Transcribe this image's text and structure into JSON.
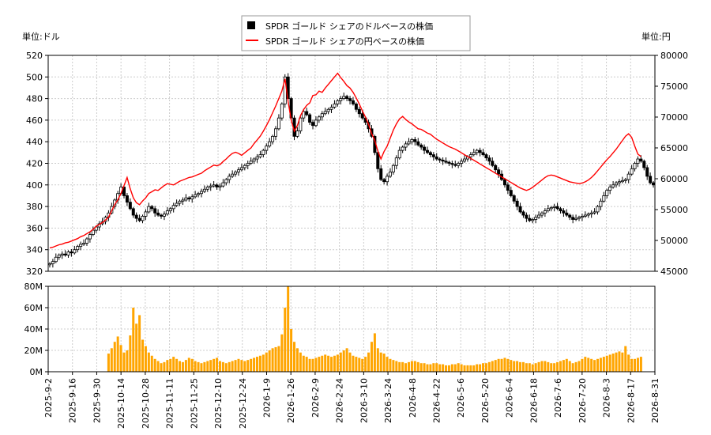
{
  "chart_data": [
    {
      "type": "candlestick+line",
      "title": "",
      "legend": {
        "placement": "top-center",
        "entries": [
          {
            "label": "SPDR ゴールド シェアのドルベースの株価",
            "color": "#000000",
            "marker": "square"
          },
          {
            "label": "SPDR ゴールド シェアの円ベースの株価",
            "color": "#ff0000",
            "marker": "line"
          }
        ]
      },
      "left_axis": {
        "unit_label": "単位:ドル",
        "ylim": [
          320,
          520
        ],
        "ticks": [
          320,
          340,
          360,
          380,
          400,
          420,
          440,
          460,
          480,
          500,
          520
        ]
      },
      "right_axis": {
        "unit_label": "単位:円",
        "ylim": [
          45000,
          80000
        ],
        "ticks": [
          45000,
          50000,
          55000,
          60000,
          65000,
          70000,
          75000,
          80000
        ]
      },
      "grid": true,
      "x_ticks": [
        "2025-9-2",
        "2025-9-16",
        "2025-9-30",
        "2025-10-14",
        "2025-10-28",
        "2025-11-11",
        "2025-11-25",
        "2025-12-10",
        "2025-12-24",
        "2026-1-9",
        "2026-1-26",
        "2026-2-9",
        "2026-2-24",
        "2026-3-10",
        "2026-3-24",
        "2026-4-8",
        "2026-4-22",
        "2026-5-6",
        "2026-5-20",
        "2026-6-4",
        "2026-6-18",
        "2026-7-6",
        "2026-7-20",
        "2026-8-3",
        "2026-8-17",
        "2026-8-31"
      ],
      "series": [
        {
          "name": "SPDR ゴールド シェアのドルベースの株価",
          "kind": "candlestick",
          "close": [
            327,
            329,
            333,
            335,
            336,
            335,
            338,
            337,
            340,
            343,
            345,
            346,
            350,
            354,
            358,
            361,
            364,
            366,
            370,
            374,
            380,
            386,
            392,
            398,
            390,
            384,
            378,
            372,
            369,
            367,
            371,
            375,
            380,
            378,
            374,
            372,
            371,
            373,
            376,
            378,
            381,
            383,
            385,
            386,
            388,
            387,
            389,
            391,
            392,
            394,
            396,
            398,
            399,
            400,
            398,
            399,
            402,
            405,
            408,
            410,
            412,
            414,
            416,
            418,
            420,
            422,
            424,
            426,
            428,
            432,
            436,
            440,
            445,
            452,
            462,
            475,
            500,
            480,
            462,
            445,
            450,
            462,
            468,
            465,
            458,
            455,
            460,
            463,
            466,
            468,
            470,
            472,
            475,
            478,
            480,
            482,
            480,
            478,
            475,
            470,
            466,
            462,
            458,
            452,
            445,
            430,
            415,
            405,
            403,
            408,
            412,
            418,
            425,
            432,
            435,
            438,
            440,
            442,
            440,
            437,
            435,
            432,
            430,
            428,
            426,
            424,
            423,
            422,
            421,
            420,
            419,
            418,
            420,
            422,
            424,
            426,
            428,
            430,
            432,
            430,
            428,
            425,
            422,
            418,
            414,
            410,
            405,
            400,
            395,
            390,
            385,
            380,
            375,
            372,
            369,
            367,
            368,
            370,
            372,
            374,
            376,
            378,
            379,
            380,
            378,
            376,
            374,
            372,
            370,
            368,
            369,
            370,
            371,
            372,
            373,
            374,
            375,
            380,
            385,
            390,
            395,
            398,
            400,
            402,
            403,
            404,
            405,
            410,
            415,
            420,
            424,
            422,
            416,
            408,
            402,
            400
          ],
          "volume_millions": [
            0,
            0,
            0,
            0,
            0,
            0,
            0,
            0,
            0,
            0,
            0,
            0,
            0,
            0,
            0,
            0,
            0,
            0,
            0,
            17,
            22,
            28,
            33,
            25,
            18,
            20,
            34,
            60,
            45,
            53,
            30,
            24,
            18,
            15,
            12,
            10,
            8,
            9,
            11,
            12,
            14,
            12,
            10,
            9,
            11,
            13,
            12,
            10,
            9,
            8,
            9,
            10,
            11,
            12,
            13,
            10,
            9,
            8,
            9,
            10,
            11,
            12,
            11,
            10,
            11,
            12,
            13,
            14,
            15,
            16,
            18,
            20,
            22,
            23,
            24,
            35,
            60,
            80,
            40,
            28,
            22,
            18,
            15,
            14,
            12,
            12,
            13,
            14,
            15,
            16,
            15,
            14,
            15,
            16,
            18,
            20,
            22,
            18,
            15,
            14,
            13,
            12,
            14,
            18,
            28,
            36,
            22,
            18,
            17,
            14,
            12,
            11,
            10,
            9,
            9,
            8,
            9,
            10,
            10,
            9,
            8,
            8,
            7,
            7,
            8,
            8,
            7,
            7,
            6,
            6,
            7,
            7,
            8,
            7,
            6,
            6,
            6,
            6,
            7,
            7,
            8,
            8,
            9,
            10,
            11,
            12,
            12,
            13,
            12,
            11,
            10,
            10,
            9,
            9,
            8,
            8,
            7,
            8,
            9,
            10,
            10,
            9,
            8,
            8,
            9,
            10,
            11,
            12,
            10,
            8,
            9,
            10,
            12,
            14,
            13,
            12,
            11,
            12,
            13,
            14,
            15,
            16,
            17,
            18,
            19,
            18,
            24,
            16,
            12,
            12,
            13,
            14
          ]
        },
        {
          "name": "SPDR ゴールド シェアの円ベースの株価",
          "kind": "line",
          "values": [
            48800,
            48900,
            49100,
            49300,
            49400,
            49600,
            49700,
            49900,
            50100,
            50300,
            50600,
            50800,
            51100,
            51400,
            51800,
            52300,
            52600,
            52900,
            53300,
            53800,
            54800,
            55800,
            56600,
            57600,
            58900,
            60200,
            58400,
            56900,
            56100,
            55800,
            56400,
            56900,
            57600,
            57900,
            58200,
            58100,
            58500,
            58900,
            59200,
            59100,
            59000,
            59300,
            59600,
            59800,
            60000,
            60200,
            60300,
            60500,
            60700,
            60900,
            61300,
            61600,
            61900,
            62200,
            62100,
            62300,
            62800,
            63200,
            63700,
            64100,
            64300,
            64100,
            63800,
            64200,
            64600,
            65000,
            65700,
            66300,
            66900,
            67700,
            68600,
            69600,
            70700,
            71800,
            73000,
            74200,
            76200,
            72500,
            69500,
            67700,
            68600,
            70200,
            71200,
            71900,
            72300,
            73500,
            73600,
            74200,
            74000,
            74700,
            75300,
            75900,
            76500,
            77100,
            76400,
            75800,
            75100,
            74700,
            74000,
            73100,
            72100,
            71000,
            70000,
            68800,
            67300,
            66200,
            64500,
            63200,
            64400,
            65300,
            66600,
            67900,
            68900,
            69700,
            70100,
            69600,
            69200,
            68900,
            68500,
            68100,
            68000,
            67700,
            67400,
            67200,
            66800,
            66400,
            66100,
            65800,
            65500,
            65200,
            65000,
            64800,
            64500,
            64200,
            63900,
            63600,
            63300,
            63000,
            62700,
            62400,
            62100,
            61800,
            61500,
            61200,
            60900,
            60600,
            60300,
            60000,
            59700,
            59400,
            59100,
            58800,
            58500,
            58300,
            58100,
            58300,
            58600,
            59000,
            59400,
            59800,
            60200,
            60500,
            60600,
            60500,
            60300,
            60100,
            59900,
            59700,
            59500,
            59400,
            59300,
            59200,
            59300,
            59500,
            59800,
            60200,
            60700,
            61300,
            61900,
            62500,
            63100,
            63600,
            64200,
            64800,
            65500,
            66200,
            66900,
            67300,
            66700,
            65300,
            64000,
            63600
          ]
        }
      ]
    },
    {
      "type": "bar",
      "title": "",
      "series_ref": "volume_millions",
      "y_axis": {
        "ylim": [
          0,
          80
        ],
        "ticks": [
          "0M",
          "20M",
          "40M",
          "60M",
          "80M"
        ]
      },
      "grid": true,
      "bar_color": "#ffa500"
    }
  ]
}
